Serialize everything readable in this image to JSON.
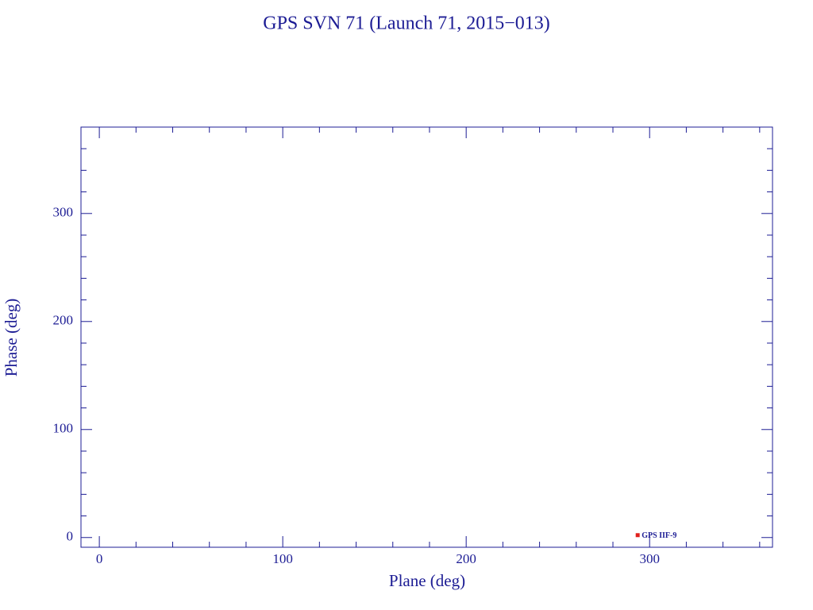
{
  "chart_data": {
    "type": "scatter",
    "title": "GPS SVN 71 (Launch 71, 2015−013)",
    "x_label": "Plane (deg)",
    "y_label": "Phase (deg)",
    "xlim": [
      -10,
      367
    ],
    "ylim": [
      -9,
      380
    ],
    "xticks": [
      0,
      100,
      200,
      300
    ],
    "yticks": [
      0,
      100,
      200,
      300
    ],
    "xminorticks": [
      20,
      40,
      60,
      80,
      120,
      140,
      160,
      180,
      220,
      240,
      260,
      280,
      320,
      340,
      360
    ],
    "yminorticks": [
      20,
      40,
      60,
      80,
      120,
      140,
      160,
      180,
      220,
      240,
      260,
      280,
      320,
      340,
      360
    ],
    "series": [
      {
        "name": "GPS IIF-9",
        "color": "#e0201c",
        "x": [
          293.5
        ],
        "values": [
          2.2
        ]
      }
    ],
    "axis_color": "#1c1c94"
  }
}
